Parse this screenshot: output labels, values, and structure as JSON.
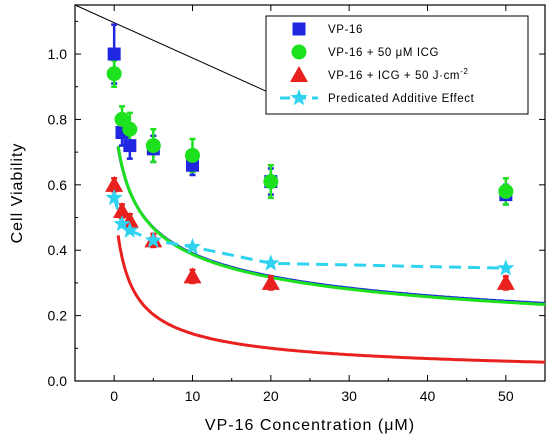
{
  "chart_data": {
    "type": "scatter",
    "xlabel": "VP-16 Concentration (μM)",
    "ylabel": "Cell Viability",
    "xlim": [
      -5,
      55
    ],
    "ylim": [
      0.0,
      1.15
    ],
    "x_ticks": [
      "0",
      "10",
      "20",
      "30",
      "40",
      "50"
    ],
    "y_ticks": [
      "0.0",
      "0.2",
      "0.4",
      "0.6",
      "0.8",
      "1.0"
    ],
    "legend_position": "top-right",
    "grid": false,
    "series": [
      {
        "name": "VP-16",
        "color": "#1f28e0",
        "marker": "square",
        "x": [
          0,
          1,
          2,
          5,
          10,
          20,
          50
        ],
        "y": [
          1.0,
          0.76,
          0.72,
          0.71,
          0.66,
          0.61,
          0.57
        ],
        "err": [
          0.09,
          0.04,
          0.04,
          0.04,
          0.03,
          0.04,
          0.03
        ],
        "fit": {
          "y0": 0.81,
          "b": 0.305
        }
      },
      {
        "name": "VP-16 + 50 μM ICG",
        "color": "#1ee11e",
        "marker": "circle",
        "x": [
          0,
          1,
          2,
          5,
          10,
          20,
          50
        ],
        "y": [
          0.94,
          0.8,
          0.77,
          0.72,
          0.69,
          0.61,
          0.58
        ],
        "err": [
          0.04,
          0.04,
          0.05,
          0.05,
          0.05,
          0.05,
          0.04
        ],
        "fit": {
          "y0": 0.815,
          "b": 0.31
        }
      },
      {
        "name": "VP-16 + ICG + 50 J·cm",
        "name_superscript": "-2",
        "color": "#e8201e",
        "marker": "triangle",
        "x": [
          0,
          1,
          2,
          5,
          10,
          20,
          50
        ],
        "y": [
          0.6,
          0.52,
          0.49,
          0.43,
          0.32,
          0.3,
          0.3
        ],
        "err": [
          0.02,
          0.02,
          0.02,
          0.02,
          0.02,
          0.02,
          0.02
        ],
        "fit": {
          "y0": 0.56,
          "b": 0.565
        }
      },
      {
        "name": "Predicated Additive Effect",
        "color": "#2fd3f0",
        "marker": "star",
        "line": "dashed",
        "x": [
          0,
          1,
          2,
          5,
          10,
          20,
          50
        ],
        "y": [
          0.56,
          0.48,
          0.46,
          0.43,
          0.41,
          0.36,
          0.345
        ]
      }
    ],
    "annotations": [
      {
        "type": "line",
        "x1": -5,
        "y1": 1.15,
        "x2": 20,
        "y2": 0.88,
        "color": "#000000"
      }
    ]
  }
}
